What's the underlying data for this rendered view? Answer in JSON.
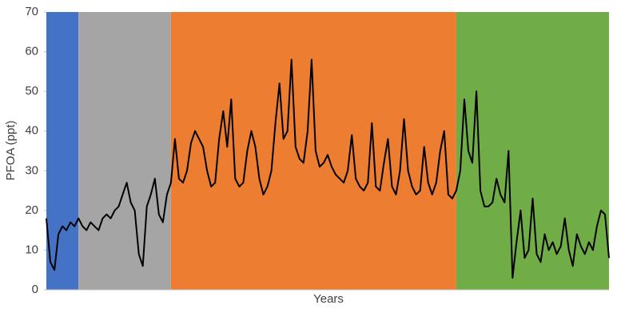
{
  "chart_data": {
    "type": "line",
    "y_label": "PFOA (ppt)",
    "x_label": "Years",
    "ylim": [
      0,
      70
    ],
    "yticks": [
      0,
      10,
      20,
      30,
      40,
      50,
      60,
      70
    ],
    "xlim": [
      0,
      140
    ],
    "color": "#000000",
    "bands": [
      {
        "from": 0,
        "to": 8,
        "color": "#4472c4"
      },
      {
        "from": 8,
        "to": 31,
        "color": "#a5a5a5"
      },
      {
        "from": 31,
        "to": 102,
        "color": "#ed7d31"
      },
      {
        "from": 102,
        "to": 140,
        "color": "#70ad47"
      }
    ],
    "values": [
      18,
      7,
      5,
      14,
      16,
      15,
      17,
      16,
      18,
      16,
      15,
      17,
      16,
      15,
      18,
      19,
      18,
      20,
      21,
      24,
      27,
      22,
      20,
      9,
      6,
      21,
      24,
      28,
      19,
      17,
      24,
      27,
      38,
      28,
      27,
      30,
      37,
      40,
      38,
      36,
      30,
      26,
      27,
      38,
      45,
      36,
      48,
      28,
      26,
      27,
      35,
      40,
      36,
      28,
      24,
      26,
      30,
      42,
      52,
      38,
      40,
      58,
      36,
      33,
      32,
      40,
      58,
      35,
      31,
      32,
      34,
      31,
      29,
      28,
      27,
      30,
      39,
      28,
      26,
      25,
      27,
      42,
      26,
      25,
      32,
      38,
      26,
      24,
      30,
      43,
      30,
      26,
      24,
      25,
      36,
      27,
      24,
      27,
      35,
      40,
      24,
      23,
      25,
      30,
      48,
      35,
      32,
      50,
      25,
      21,
      21,
      22,
      28,
      24,
      22,
      35,
      3,
      12,
      20,
      8,
      10,
      23,
      9,
      7,
      14,
      10,
      12,
      9,
      11,
      18,
      10,
      6,
      14,
      11,
      9,
      12,
      10,
      16,
      20,
      19,
      8
    ]
  }
}
